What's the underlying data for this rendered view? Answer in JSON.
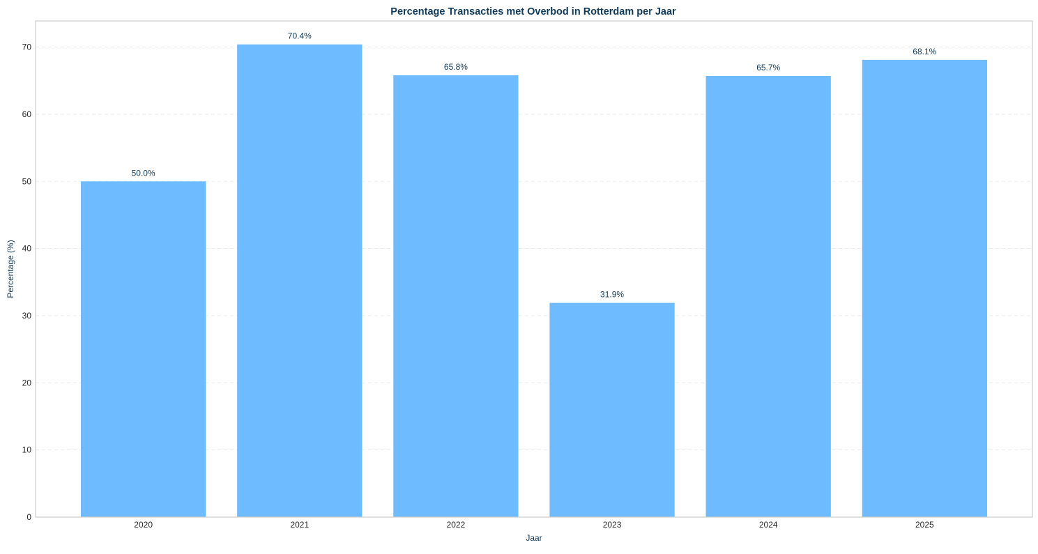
{
  "chart_data": {
    "type": "bar",
    "title": "Percentage Transacties met Overbod in Rotterdam per Jaar",
    "xlabel": "Jaar",
    "ylabel": "Percentage (%)",
    "categories": [
      "2020",
      "2021",
      "2022",
      "2023",
      "2024",
      "2025"
    ],
    "values": [
      50.0,
      70.4,
      65.8,
      31.9,
      65.7,
      68.1
    ],
    "data_labels": [
      "50.0%",
      "70.4%",
      "65.8%",
      "31.9%",
      "65.7%",
      "68.1%"
    ],
    "ylim": [
      0,
      73.9
    ],
    "yticks": [
      0,
      10,
      20,
      30,
      40,
      50,
      60,
      70
    ],
    "grid": true,
    "bar_color": "#6ebcff",
    "title_color": "#0f3a5a"
  }
}
